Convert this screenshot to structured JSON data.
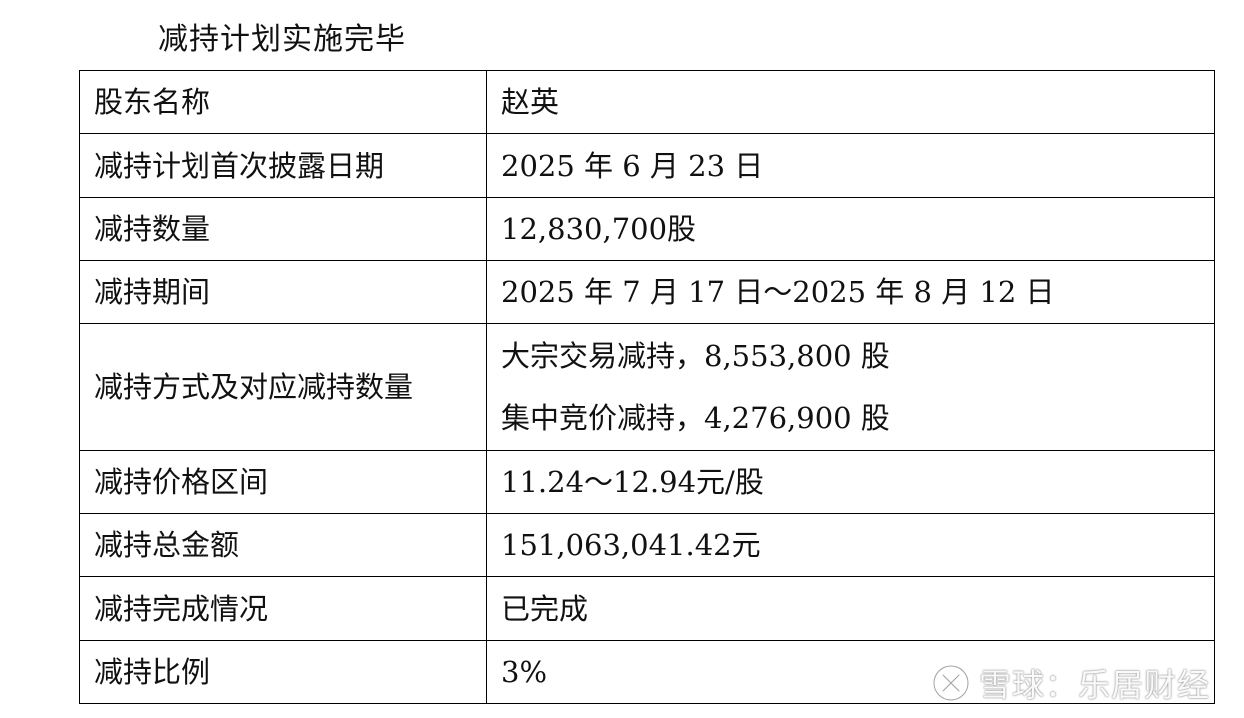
{
  "section": {
    "title": "减持计划实施完毕"
  },
  "table": {
    "rows": [
      {
        "label": "股东名称",
        "value": "赵英"
      },
      {
        "label": "减持计划首次披露日期",
        "value": "2025 年 6 月 23 日"
      },
      {
        "label": "减持数量",
        "value": "12,830,700股"
      },
      {
        "label": "减持期间",
        "value": "2025 年 7 月 17 日～2025 年 8 月 12 日"
      },
      {
        "label": "减持方式及对应减持数量",
        "value_lines": [
          "大宗交易减持，8,553,800 股",
          "集中竞价减持，4,276,900 股"
        ]
      },
      {
        "label": "减持价格区间",
        "value": "11.24～12.94元/股"
      },
      {
        "label": "减持总金额",
        "value": "151,063,041.42元"
      },
      {
        "label": "减持完成情况",
        "value": "已完成"
      },
      {
        "label": "减持比例",
        "value": "3%"
      }
    ]
  },
  "watermark": {
    "text": "雪球：乐居财经",
    "icon": "xueqiu-logo-icon"
  }
}
